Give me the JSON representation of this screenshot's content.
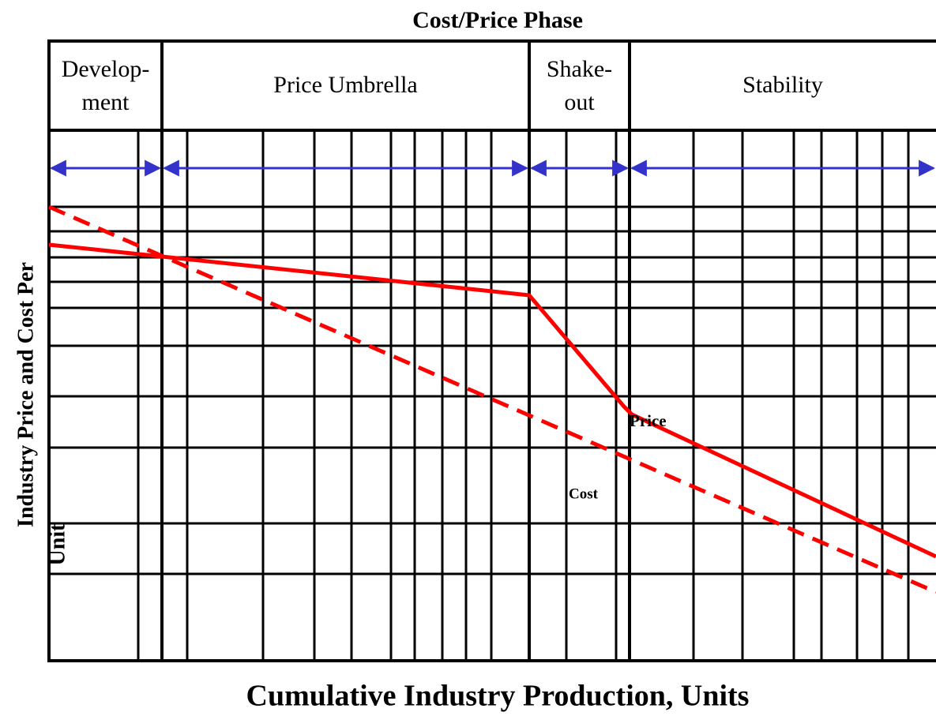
{
  "title": "Cost/Price Phase",
  "phases": [
    {
      "lines": [
        "Develop-",
        "ment"
      ]
    },
    {
      "lines": [
        "Price Umbrella"
      ]
    },
    {
      "lines": [
        "Shake-",
        "out"
      ]
    },
    {
      "lines": [
        "Stability"
      ]
    }
  ],
  "curves": {
    "price": "Price",
    "cost": "Cost"
  },
  "y_axis": {
    "lines": [
      "Industry Price and Cost Per",
      "Unit"
    ]
  },
  "x_axis": "Cumulative Industry Production, Units"
}
